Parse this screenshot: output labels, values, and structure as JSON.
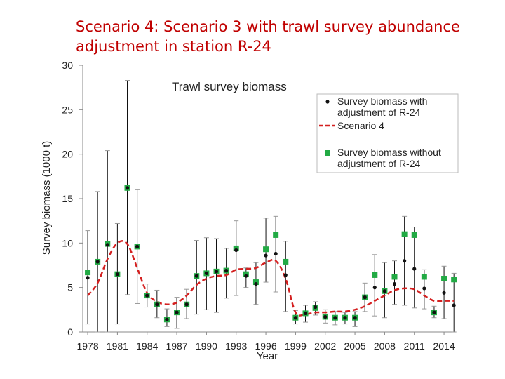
{
  "slide": {
    "title": "Scenario 4: Scenario 3 with trawl survey abundance adjustment in station R-24"
  },
  "colors": {
    "title": "#c00000",
    "scenario": "#d42020",
    "without_adjustment": "#22aa44",
    "with_adjustment": "#111111",
    "error_bar": "#999999"
  },
  "chart_data": {
    "type": "scatter",
    "title": "Trawl survey biomass",
    "xlabel": "Year",
    "ylabel": "Survey biomass (1000 t)",
    "xlim": [
      1977.5,
      2015.2
    ],
    "ylim": [
      0,
      30
    ],
    "x_ticks": [
      1978,
      1981,
      1984,
      1987,
      1990,
      1993,
      1996,
      1999,
      2002,
      2005,
      2008,
      2011,
      2014
    ],
    "x_tick_labels": [
      "1978",
      "1981",
      "1984",
      "1987",
      "1990",
      "1993",
      "1996",
      "1999",
      "2002",
      "2005",
      "2008",
      "2011",
      "2014"
    ],
    "y_ticks": [
      0,
      5,
      10,
      15,
      20,
      25,
      30
    ],
    "y_tick_labels": [
      "0",
      "5",
      "10",
      "15",
      "20",
      "25",
      "30"
    ],
    "legend_position": "top-right",
    "legend": [
      {
        "label_lines": [
          "Survey biomass with",
          "adjustment of R-24"
        ],
        "symbol": "dot"
      },
      {
        "label_lines": [
          "Scenario 4"
        ],
        "symbol": "dashed-line"
      },
      {
        "label_lines": [
          "Survey biomass without",
          "adjustment of R-24"
        ],
        "symbol": "square"
      }
    ],
    "series": [
      {
        "name": "Survey biomass with adjustment of R-24",
        "points": [
          {
            "x": 1978,
            "y": 6.1,
            "lo": 0.9,
            "hi": 11.4
          },
          {
            "x": 1979,
            "y": 7.9,
            "lo": 0,
            "hi": 15.8
          },
          {
            "x": 1980,
            "y": 9.8,
            "lo": 0,
            "hi": 20.4
          },
          {
            "x": 1981,
            "y": 6.5,
            "lo": 0.9,
            "hi": 12.2
          },
          {
            "x": 1982,
            "y": 16.2,
            "lo": 4.2,
            "hi": 28.3
          },
          {
            "x": 1983,
            "y": 9.6,
            "lo": 3.2,
            "hi": 16.0
          },
          {
            "x": 1984,
            "y": 4.1,
            "lo": 2.8,
            "hi": 5.4
          },
          {
            "x": 1985,
            "y": 3.1,
            "lo": 1.6,
            "hi": 4.7
          },
          {
            "x": 1986,
            "y": 1.4,
            "lo": 0.6,
            "hi": 2.6
          },
          {
            "x": 1987,
            "y": 2.2,
            "lo": 0.4,
            "hi": 3.9
          },
          {
            "x": 1988,
            "y": 3.1,
            "lo": 1.5,
            "hi": 4.8
          },
          {
            "x": 1989,
            "y": 6.3,
            "lo": 2.0,
            "hi": 10.3
          },
          {
            "x": 1990,
            "y": 6.6,
            "lo": 2.5,
            "hi": 10.6
          },
          {
            "x": 1991,
            "y": 6.8,
            "lo": 2.2,
            "hi": 10.5
          },
          {
            "x": 1992,
            "y": 6.9,
            "lo": 3.8,
            "hi": 9.4
          },
          {
            "x": 1993,
            "y": 9.2,
            "lo": 4.1,
            "hi": 12.5
          },
          {
            "x": 1994,
            "y": 6.3,
            "lo": 5.0,
            "hi": 7.2
          },
          {
            "x": 1995,
            "y": 5.4,
            "lo": 3.1,
            "hi": 7.8
          },
          {
            "x": 1996,
            "y": 8.6,
            "lo": 5.6,
            "hi": 12.8
          },
          {
            "x": 1997,
            "y": 8.8,
            "lo": 4.5,
            "hi": 13.0
          },
          {
            "x": 1998,
            "y": 6.4,
            "lo": 2.3,
            "hi": 10.2
          },
          {
            "x": 1999,
            "y": 1.6,
            "lo": 0.9,
            "hi": 2.4
          },
          {
            "x": 2000,
            "y": 2.1,
            "lo": 1.1,
            "hi": 3.0
          },
          {
            "x": 2001,
            "y": 2.8,
            "lo": 1.9,
            "hi": 3.4
          },
          {
            "x": 2002,
            "y": 1.7,
            "lo": 1.0,
            "hi": 2.5
          },
          {
            "x": 2003,
            "y": 1.6,
            "lo": 0.8,
            "hi": 2.3
          },
          {
            "x": 2004,
            "y": 1.6,
            "lo": 0.9,
            "hi": 2.2
          },
          {
            "x": 2005,
            "y": 1.6,
            "lo": 0.6,
            "hi": 2.3
          },
          {
            "x": 2006,
            "y": 3.9,
            "lo": 2.3,
            "hi": 5.5
          },
          {
            "x": 2007,
            "y": 5.0,
            "lo": 1.8,
            "hi": 8.7
          },
          {
            "x": 2008,
            "y": 4.6,
            "lo": 1.6,
            "hi": 7.8
          },
          {
            "x": 2009,
            "y": 5.4,
            "lo": 3.1,
            "hi": 8.0
          },
          {
            "x": 2010,
            "y": 8.0,
            "lo": 3.0,
            "hi": 13.0
          },
          {
            "x": 2011,
            "y": 7.1,
            "lo": 2.7,
            "hi": 11.8
          },
          {
            "x": 2012,
            "y": 4.9,
            "lo": 2.6,
            "hi": 7.0
          },
          {
            "x": 2013,
            "y": 2.2,
            "lo": 1.6,
            "hi": 2.9
          },
          {
            "x": 2014,
            "y": 4.4,
            "lo": 1.5,
            "hi": 7.4
          },
          {
            "x": 2015,
            "y": 3.0,
            "lo": 0,
            "hi": 6.6
          }
        ]
      },
      {
        "name": "Survey biomass without adjustment of R-24",
        "points": [
          {
            "x": 1978,
            "y": 6.7
          },
          {
            "x": 1979,
            "y": 7.9
          },
          {
            "x": 1980,
            "y": 9.9
          },
          {
            "x": 1981,
            "y": 6.5
          },
          {
            "x": 1982,
            "y": 16.2
          },
          {
            "x": 1983,
            "y": 9.6
          },
          {
            "x": 1984,
            "y": 4.1
          },
          {
            "x": 1985,
            "y": 3.1
          },
          {
            "x": 1986,
            "y": 1.4
          },
          {
            "x": 1987,
            "y": 2.2
          },
          {
            "x": 1988,
            "y": 3.1
          },
          {
            "x": 1989,
            "y": 6.3
          },
          {
            "x": 1990,
            "y": 6.6
          },
          {
            "x": 1991,
            "y": 6.8
          },
          {
            "x": 1992,
            "y": 6.9
          },
          {
            "x": 1993,
            "y": 9.4
          },
          {
            "x": 1994,
            "y": 6.5
          },
          {
            "x": 1995,
            "y": 5.6
          },
          {
            "x": 1996,
            "y": 9.3
          },
          {
            "x": 1997,
            "y": 10.9
          },
          {
            "x": 1998,
            "y": 7.9
          },
          {
            "x": 1999,
            "y": 1.6
          },
          {
            "x": 2000,
            "y": 2.1
          },
          {
            "x": 2001,
            "y": 2.7
          },
          {
            "x": 2002,
            "y": 1.7
          },
          {
            "x": 2003,
            "y": 1.6
          },
          {
            "x": 2004,
            "y": 1.6
          },
          {
            "x": 2005,
            "y": 1.6
          },
          {
            "x": 2006,
            "y": 3.9
          },
          {
            "x": 2007,
            "y": 6.4
          },
          {
            "x": 2008,
            "y": 4.6
          },
          {
            "x": 2009,
            "y": 6.2
          },
          {
            "x": 2010,
            "y": 11.0
          },
          {
            "x": 2011,
            "y": 10.9
          },
          {
            "x": 2012,
            "y": 6.2
          },
          {
            "x": 2013,
            "y": 2.2
          },
          {
            "x": 2014,
            "y": 6.0
          },
          {
            "x": 2015,
            "y": 5.9
          }
        ]
      },
      {
        "name": "Scenario 4",
        "style": "dashed",
        "points": [
          {
            "x": 1978,
            "y": 4.1
          },
          {
            "x": 1979,
            "y": 5.5
          },
          {
            "x": 1980,
            "y": 8.2
          },
          {
            "x": 1981,
            "y": 10.0
          },
          {
            "x": 1982,
            "y": 9.9
          },
          {
            "x": 1983,
            "y": 7.2
          },
          {
            "x": 1984,
            "y": 4.4
          },
          {
            "x": 1985,
            "y": 3.4
          },
          {
            "x": 1986,
            "y": 3.1
          },
          {
            "x": 1987,
            "y": 3.3
          },
          {
            "x": 1988,
            "y": 4.1
          },
          {
            "x": 1989,
            "y": 5.3
          },
          {
            "x": 1990,
            "y": 6.0
          },
          {
            "x": 1991,
            "y": 6.3
          },
          {
            "x": 1992,
            "y": 6.4
          },
          {
            "x": 1993,
            "y": 7.0
          },
          {
            "x": 1994,
            "y": 7.1
          },
          {
            "x": 1995,
            "y": 7.2
          },
          {
            "x": 1996,
            "y": 7.8
          },
          {
            "x": 1997,
            "y": 8.0
          },
          {
            "x": 1998,
            "y": 6.0
          },
          {
            "x": 1999,
            "y": 2.2
          },
          {
            "x": 2000,
            "y": 2.0
          },
          {
            "x": 2001,
            "y": 2.2
          },
          {
            "x": 2002,
            "y": 2.2
          },
          {
            "x": 2003,
            "y": 2.3
          },
          {
            "x": 2004,
            "y": 2.3
          },
          {
            "x": 2005,
            "y": 2.5
          },
          {
            "x": 2006,
            "y": 2.9
          },
          {
            "x": 2007,
            "y": 3.5
          },
          {
            "x": 2008,
            "y": 4.1
          },
          {
            "x": 2009,
            "y": 4.7
          },
          {
            "x": 2010,
            "y": 4.9
          },
          {
            "x": 2011,
            "y": 4.8
          },
          {
            "x": 2012,
            "y": 4.1
          },
          {
            "x": 2013,
            "y": 3.5
          },
          {
            "x": 2014,
            "y": 3.5
          },
          {
            "x": 2015,
            "y": 3.5
          }
        ]
      }
    ]
  }
}
